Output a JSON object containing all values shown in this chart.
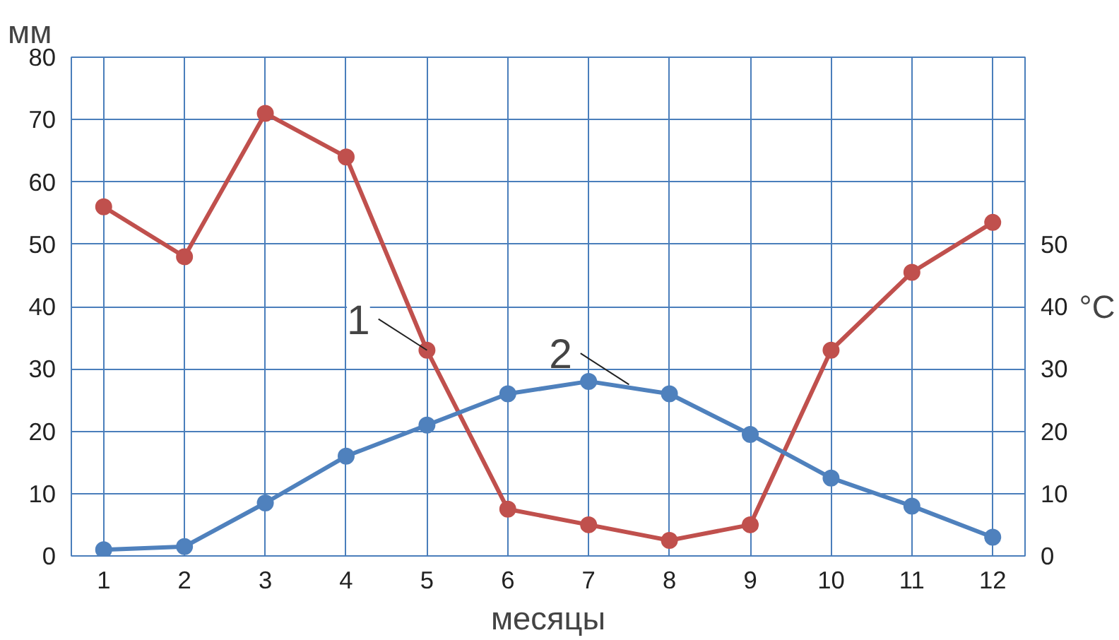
{
  "chart_data": {
    "type": "line",
    "xlabel": "месяцы",
    "ylabel": "мм",
    "y2label": "°C",
    "x": [
      1,
      2,
      3,
      4,
      5,
      6,
      7,
      8,
      9,
      10,
      11,
      12
    ],
    "series": [
      {
        "color": "#c0504d",
        "values": [
          56,
          48,
          71,
          64,
          33,
          7.5,
          5,
          2.5,
          5,
          33,
          45.5,
          53.5
        ]
      },
      {
        "color": "#4f81bd",
        "values": [
          1,
          1.5,
          8.5,
          16,
          21,
          26,
          28,
          26,
          19.5,
          12.5,
          8,
          3
        ]
      }
    ],
    "xlim": [
      0.6,
      12.4
    ],
    "xticks": [
      1,
      2,
      3,
      4,
      5,
      6,
      7,
      8,
      9,
      10,
      11,
      12
    ],
    "ylim": [
      0,
      80
    ],
    "yticks": [
      0,
      10,
      20,
      30,
      40,
      50,
      60,
      70,
      80
    ],
    "y2lim": [
      0,
      80
    ],
    "y2ticks": [
      0,
      10,
      20,
      30,
      40,
      50
    ],
    "grid": true,
    "marker": "circle",
    "line_style": "solid",
    "annotations": [
      {
        "text": "1",
        "x": 5,
        "y": 33
      },
      {
        "text": "2",
        "x": 7.5,
        "y": 27.5
      }
    ]
  }
}
